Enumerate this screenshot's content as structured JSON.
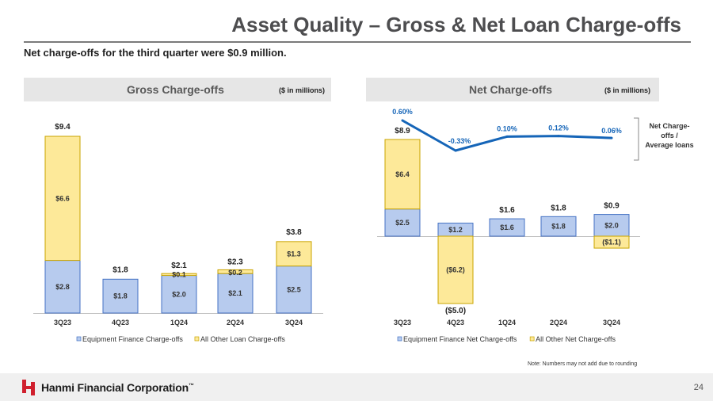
{
  "page": {
    "title": "Asset Quality – Gross & Net Loan Charge-offs",
    "subtitle": "Net charge-offs for the third quarter were $0.9 million.",
    "note": "Note: Numbers may not add due to rounding",
    "page_number": "24",
    "company": "Hanmi Financial Corporation",
    "trademark": "™"
  },
  "colors": {
    "equipment": "#b7cbee",
    "equipment_stroke": "#4472c4",
    "other": "#fde999",
    "other_stroke": "#c9a400",
    "line": "#1565b8",
    "logo_red": "#d0202e"
  },
  "chart_data": [
    {
      "type": "bar",
      "stacked": true,
      "title": "Gross Charge-offs",
      "units": "($ in millions)",
      "categories": [
        "3Q23",
        "4Q23",
        "1Q24",
        "2Q24",
        "3Q24"
      ],
      "series": [
        {
          "name": "Equipment Finance Charge-offs",
          "values": [
            2.8,
            1.8,
            2.0,
            2.1,
            2.5
          ],
          "labels": [
            "$2.8",
            "$1.8",
            "$2.0",
            "$2.1",
            "$2.5"
          ]
        },
        {
          "name": "All Other Loan Charge-offs",
          "values": [
            6.6,
            0,
            0.1,
            0.2,
            1.3
          ],
          "labels": [
            "$6.6",
            "",
            "$0.1",
            "$0.2",
            "$1.3"
          ]
        }
      ],
      "totals": [
        "$9.4",
        "$1.8",
        "$2.1",
        "$2.3",
        "$3.8"
      ],
      "ylim": [
        0,
        9.4
      ],
      "legend": "bottom"
    },
    {
      "type": "bar",
      "stacked": true,
      "title": "Net Charge-offs",
      "units": "($ in millions)",
      "categories": [
        "3Q23",
        "4Q23",
        "1Q24",
        "2Q24",
        "3Q24"
      ],
      "series": [
        {
          "name": "Equipment Finance Net Charge-offs",
          "values": [
            2.5,
            1.2,
            1.6,
            1.8,
            2.0
          ],
          "labels": [
            "$2.5",
            "$1.2",
            "$1.6",
            "$1.8",
            "$2.0"
          ]
        },
        {
          "name": "All Other Net Charge-offs",
          "values": [
            6.4,
            -6.2,
            0,
            0,
            -1.1
          ],
          "labels": [
            "$6.4",
            "($6.2)",
            "",
            "",
            "($1.1)"
          ]
        }
      ],
      "totals": [
        "$8.9",
        "($5.0)",
        "$1.6",
        "$1.8",
        "$0.9"
      ],
      "line_series": {
        "name": "Net Charge-offs / Average loans",
        "label_lines": [
          "Net Charge-",
          "offs /",
          "Average loans"
        ],
        "values": [
          0.6,
          -0.33,
          0.1,
          0.12,
          0.06
        ],
        "labels": [
          "0.60%",
          "-0.33%",
          "0.10%",
          "0.12%",
          "0.06%"
        ]
      },
      "ylim": [
        -6.2,
        8.9
      ],
      "legend": "bottom"
    }
  ]
}
